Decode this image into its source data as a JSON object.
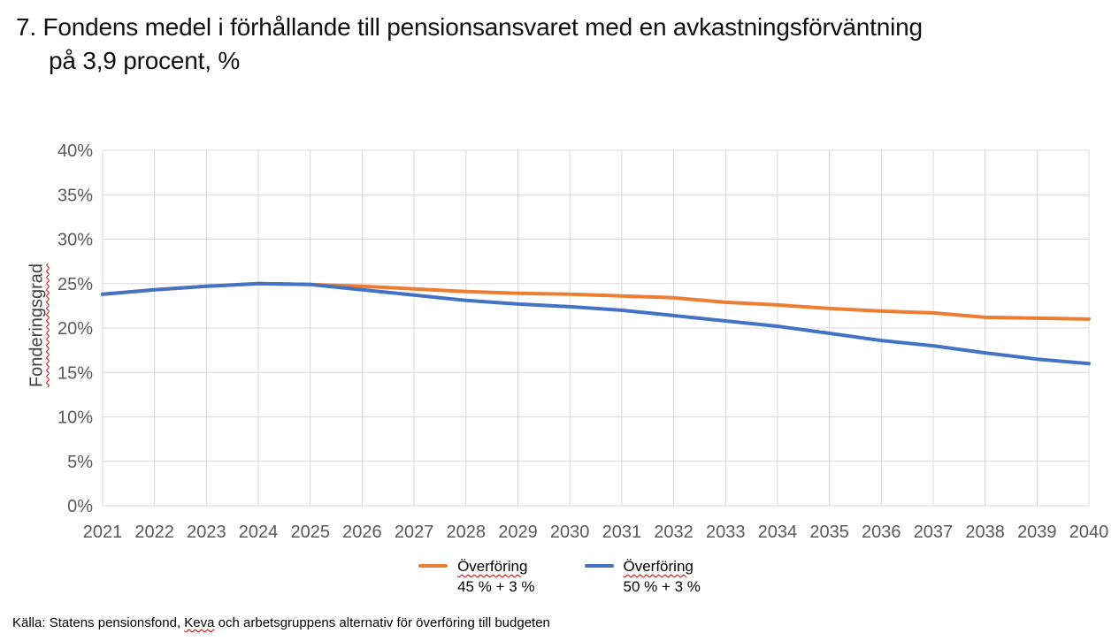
{
  "title": {
    "line1": "7. Fondens medel i förhållande till pensionsansvaret med en avkastningsförväntning",
    "line2": "på 3,9 procent, %"
  },
  "legend": [
    {
      "label_line1": "Överföring",
      "label_line2": "45 % + 3 %",
      "color": "#ED7D31"
    },
    {
      "label_line1": "Överföring",
      "label_line2": "50 % + 3 %",
      "color": "#4472C4"
    }
  ],
  "source": {
    "prefix": "Källa: Statens pensionsfond, ",
    "flagged": "Keva",
    "suffix": " och arbetsgruppens alternativ för överföring till budgeten"
  },
  "colors": {
    "grid": "#D9D9D9",
    "tick_label": "#595959",
    "axis_title": "#404040",
    "spellcheck_underline": "#C00000",
    "series_45": "#ED7D31",
    "series_50": "#4472C4"
  },
  "chart_data": {
    "type": "line",
    "title": "7. Fondens medel i förhållande till pensionsansvaret med en avkastningsförväntning på 3,9 procent, %",
    "xlabel": "",
    "ylabel": "Fonderingsgrad",
    "x": [
      2021,
      2022,
      2023,
      2024,
      2025,
      2026,
      2027,
      2028,
      2029,
      2030,
      2031,
      2032,
      2033,
      2034,
      2035,
      2036,
      2037,
      2038,
      2039,
      2040
    ],
    "series": [
      {
        "name": "Överföring 45 % + 3 %",
        "color": "#ED7D31",
        "values": [
          23.8,
          24.3,
          24.7,
          25.0,
          24.9,
          24.7,
          24.4,
          24.1,
          23.9,
          23.8,
          23.6,
          23.4,
          22.9,
          22.6,
          22.2,
          21.9,
          21.7,
          21.2,
          21.1,
          21.0
        ]
      },
      {
        "name": "Överföring 50 % + 3 %",
        "color": "#4472C4",
        "values": [
          23.8,
          24.3,
          24.7,
          25.0,
          24.9,
          24.3,
          23.7,
          23.1,
          22.7,
          22.4,
          22.0,
          21.4,
          20.8,
          20.2,
          19.4,
          18.6,
          18.0,
          17.2,
          16.5,
          16.0
        ]
      }
    ],
    "ylim": [
      0,
      40
    ],
    "ytick_step": 5,
    "ytick_format": "percent",
    "grid": true,
    "legend_position": "bottom"
  }
}
